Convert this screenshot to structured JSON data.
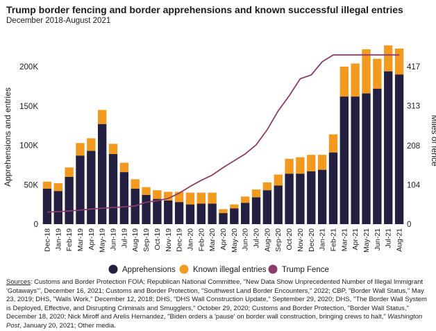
{
  "header": {
    "title": "Trump border fencing and border apprehensions and known successful illegal entries",
    "subtitle": "December 2018-August 2021"
  },
  "sources": {
    "label": "Sources",
    "text_1": ": Customs and Border Protection FOIA; Republican National Committee, \"New Data Show Unprecedented Number of Illegal Immigrant 'Gotaways'\", December 16, 2021; Customs and Border Protection, \"Southwest Land Border Encounters,\" 2022; CBP, \"Border Wall Status,\" May 23, 2019; DHS, \"Walls Work,\" December 12, 2018; DHS, \"DHS Wall Construction Update,\" September 29, 2020; DHS, \"The Border Wall System is Deployed, Effective, and Disrupting Criminals and Smugglers,\" October 29, 2020; Customs and Border Protection, \"Border Wall Status,\" December 18, 2020; Nick Miroff and Arelis Hernandez, \"Biden orders a 'pause' on border wall construction, bringing crews to halt,\" ",
    "publication": "Washington Post",
    "text_2": ", January 20, 2021; Other media."
  },
  "chart_data": {
    "type": "bar",
    "stacked": true,
    "title": "Trump border fencing and border apprehensions and known successful illegal entries",
    "subtitle": "December 2018-August 2021",
    "ylabel_left": "Apprehensions and entries",
    "ylabel_right": "Miles of fence",
    "categories": [
      "Dec-18",
      "Jan-19",
      "Feb-19",
      "Mar-19",
      "Apr-19",
      "May-19",
      "Jun-19",
      "Jul-19",
      "Aug-19",
      "Sep-19",
      "Oct-19",
      "Nov-19",
      "Dec-19",
      "Jan-20",
      "Feb-20",
      "Mar-20",
      "Apr-20",
      "May-20",
      "Jun-20",
      "Jul-20",
      "Aug-20",
      "Sep-20",
      "Oct-20",
      "Nov-20",
      "Dec-20",
      "Jan-21",
      "Feb-21",
      "Mar-21",
      "Apr-21",
      "May-21",
      "Jun-21",
      "Jul-21",
      "Aug-21"
    ],
    "series": [
      {
        "name": "Apprehensions",
        "color": "#231f41",
        "values": [
          45000,
          42000,
          60000,
          87000,
          93000,
          127000,
          89000,
          66000,
          45000,
          37000,
          32000,
          30000,
          28000,
          25000,
          26000,
          26000,
          14000,
          20000,
          27000,
          34000,
          43000,
          49000,
          64000,
          64000,
          67000,
          69000,
          91000,
          162000,
          162000,
          166000,
          172000,
          194000,
          190000
        ]
      },
      {
        "name": "Known illegal entries",
        "color": "#f29a1f",
        "values": [
          9000,
          10000,
          12000,
          16000,
          16000,
          18000,
          13000,
          12000,
          12000,
          10000,
          11000,
          11000,
          13000,
          15000,
          14000,
          14000,
          5000,
          5000,
          8000,
          10000,
          10000,
          14000,
          19000,
          21000,
          21000,
          19000,
          23000,
          38000,
          42000,
          56000,
          38000,
          33000,
          33000
        ]
      }
    ],
    "line_series": {
      "name": "Trump Fence",
      "color": "#8b3c6b",
      "axis": "right",
      "values": [
        32,
        33,
        35,
        37,
        40,
        42,
        44,
        46,
        48,
        58,
        62,
        68,
        82,
        100,
        116,
        130,
        150,
        168,
        186,
        210,
        250,
        300,
        340,
        385,
        395,
        430,
        448,
        448,
        448,
        448,
        448,
        448,
        448
      ]
    },
    "ylim_left": [
      0,
      230000
    ],
    "yticks_left": [
      "0",
      "50K",
      "100K",
      "150K",
      "200K"
    ],
    "yticks_left_values": [
      0,
      50000,
      100000,
      150000,
      200000
    ],
    "ylim_right": [
      0,
      479.6
    ],
    "yticks_right": [
      "0",
      "104",
      "208",
      "313",
      "417"
    ],
    "yticks_right_values": [
      0,
      104,
      208,
      313,
      417
    ],
    "legend": {
      "placement": "bottom",
      "items": [
        "Apprehensions",
        "Known illegal entries",
        "Trump Fence"
      ]
    },
    "grid": false
  }
}
